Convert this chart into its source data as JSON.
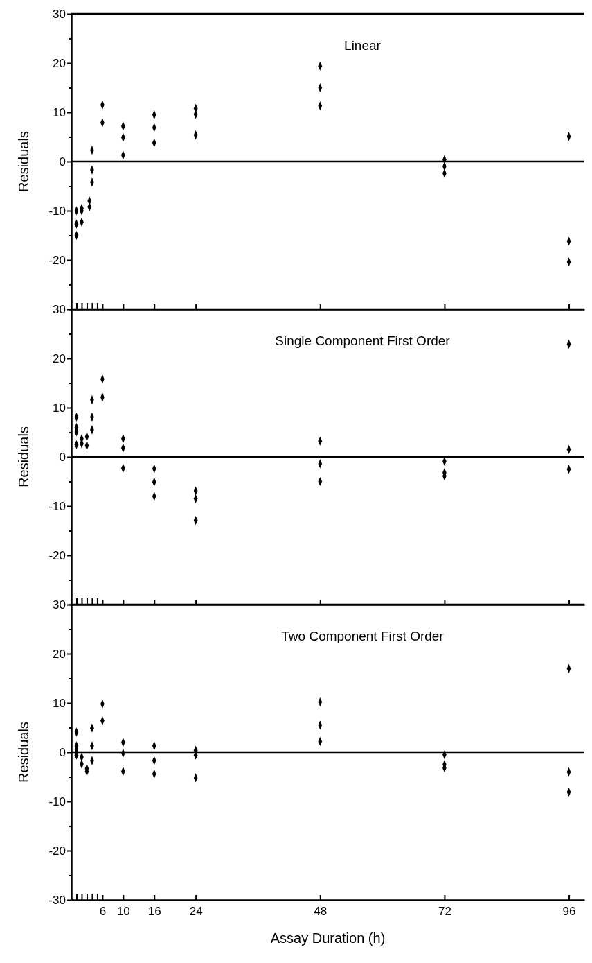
{
  "chart_data": [
    {
      "type": "scatter",
      "title": "Linear",
      "ylabel": "Residuals",
      "xlim": [
        0,
        99
      ],
      "ylim": [
        -30,
        30
      ],
      "xticks": [
        {
          "value": 1,
          "label": null
        },
        {
          "value": 2,
          "label": null
        },
        {
          "value": 3,
          "label": null
        },
        {
          "value": 4,
          "label": null
        },
        {
          "value": 5,
          "label": null
        },
        {
          "value": 6,
          "label": null
        },
        {
          "value": 10,
          "label": null
        },
        {
          "value": 16,
          "label": null
        },
        {
          "value": 24,
          "label": null
        },
        {
          "value": 48,
          "label": null
        },
        {
          "value": 72,
          "label": null
        },
        {
          "value": 96,
          "label": null
        }
      ],
      "yticks": [
        {
          "value": -30,
          "label": null
        },
        {
          "value": -25,
          "label": null
        },
        -20,
        {
          "value": -15,
          "label": null
        },
        -10,
        {
          "value": -5,
          "label": null
        },
        0,
        {
          "value": 5,
          "label": null
        },
        10,
        {
          "value": 15,
          "label": null
        },
        20,
        {
          "value": 25,
          "label": null
        },
        30
      ],
      "tick_labels": "y",
      "marker": "diamond",
      "ref_lines": [
        {
          "axis": "y",
          "value": 0,
          "color": "#000000"
        }
      ],
      "series": [
        {
          "color": "#000000",
          "x": [
            1,
            1,
            1,
            2,
            2,
            2,
            3.5,
            3.5,
            4,
            4,
            4,
            6,
            6,
            10,
            10,
            10,
            16,
            16,
            16,
            24,
            24,
            24,
            48,
            48,
            48,
            72,
            72,
            72,
            96,
            96,
            96
          ],
          "values": [
            -15,
            -12.7,
            -10,
            -12.3,
            -10,
            -9.5,
            -9.2,
            -8,
            2.3,
            -1.7,
            -4.2,
            11.5,
            7.9,
            7.2,
            4.9,
            1.3,
            9.5,
            6.9,
            3.8,
            10.8,
            9.6,
            5.4,
            19.4,
            15,
            11.3,
            0.4,
            -1,
            -2.4,
            5.1,
            -16.2,
            -20.4
          ]
        }
      ]
    },
    {
      "type": "scatter",
      "title": "Single Component First Order",
      "ylabel": "Residuals",
      "xlim": [
        0,
        99
      ],
      "ylim": [
        -30,
        30
      ],
      "xticks": [
        {
          "value": 1,
          "label": null
        },
        {
          "value": 2,
          "label": null
        },
        {
          "value": 3,
          "label": null
        },
        {
          "value": 4,
          "label": null
        },
        {
          "value": 5,
          "label": null
        },
        {
          "value": 6,
          "label": null
        },
        {
          "value": 10,
          "label": null
        },
        {
          "value": 16,
          "label": null
        },
        {
          "value": 24,
          "label": null
        },
        {
          "value": 48,
          "label": null
        },
        {
          "value": 72,
          "label": null
        },
        {
          "value": 96,
          "label": null
        }
      ],
      "yticks": [
        {
          "value": -30,
          "label": null
        },
        {
          "value": -25,
          "label": null
        },
        -20,
        {
          "value": -15,
          "label": null
        },
        -10,
        {
          "value": -5,
          "label": null
        },
        0,
        {
          "value": 5,
          "label": null
        },
        10,
        {
          "value": 15,
          "label": null
        },
        20,
        {
          "value": 25,
          "label": null
        },
        30
      ],
      "tick_labels": "y",
      "marker": "diamond",
      "ref_lines": [
        {
          "axis": "y",
          "value": 0,
          "color": "#000000"
        }
      ],
      "series": [
        {
          "color": "#000000",
          "x": [
            1,
            1,
            1,
            1,
            2,
            2,
            3,
            3,
            4,
            4,
            4,
            6,
            6,
            10,
            10,
            10,
            16,
            16,
            16,
            24,
            24,
            24,
            48,
            48,
            48,
            72,
            72,
            72,
            96,
            96,
            96
          ],
          "values": [
            8.1,
            6,
            5.1,
            2.5,
            3.7,
            2.7,
            2.3,
            4.1,
            11.6,
            8.1,
            5.5,
            15.8,
            12.1,
            3.7,
            1.8,
            -2.3,
            -2.4,
            -5.1,
            -8,
            -6.9,
            -8.5,
            -12.9,
            3.2,
            -1.4,
            -5,
            -0.9,
            -3.2,
            -3.9,
            22.9,
            1.5,
            -2.5
          ]
        }
      ]
    },
    {
      "type": "scatter",
      "title": "Two Component First Order",
      "xlabel": "Assay Duration (h)",
      "ylabel": "Residuals",
      "xlim": [
        0,
        99
      ],
      "ylim": [
        -30,
        30
      ],
      "xticks": [
        {
          "value": 1,
          "label": null
        },
        {
          "value": 2,
          "label": null
        },
        {
          "value": 3,
          "label": null
        },
        {
          "value": 4,
          "label": null
        },
        {
          "value": 5,
          "label": null
        },
        6,
        10,
        16,
        24,
        48,
        72,
        96
      ],
      "yticks": [
        -30,
        {
          "value": -25,
          "label": null
        },
        -20,
        {
          "value": -15,
          "label": null
        },
        -10,
        {
          "value": -5,
          "label": null
        },
        0,
        {
          "value": 5,
          "label": null
        },
        10,
        {
          "value": 15,
          "label": null
        },
        20,
        {
          "value": 25,
          "label": null
        },
        30
      ],
      "marker": "diamond",
      "ref_lines": [
        {
          "axis": "y",
          "value": 0,
          "color": "#000000"
        }
      ],
      "series": [
        {
          "color": "#000000",
          "x": [
            1,
            1,
            1,
            1,
            1,
            2,
            2,
            3,
            3,
            4,
            4,
            4,
            6,
            6,
            10,
            10,
            10,
            16,
            16,
            16,
            24,
            24,
            24,
            48,
            48,
            48,
            72,
            72,
            72,
            96,
            96,
            96
          ],
          "values": [
            4.1,
            1.3,
            0.6,
            0,
            -0.6,
            -1,
            -2.4,
            -3.3,
            -3.9,
            4.9,
            1.3,
            -1.7,
            9.8,
            6.4,
            2,
            -0.2,
            -3.9,
            1.3,
            -1.7,
            -4.4,
            0.4,
            -0.6,
            -5.2,
            10.2,
            5.5,
            2.2,
            -0.5,
            -2.5,
            -3.2,
            17,
            -4,
            -8.1
          ]
        }
      ]
    }
  ]
}
